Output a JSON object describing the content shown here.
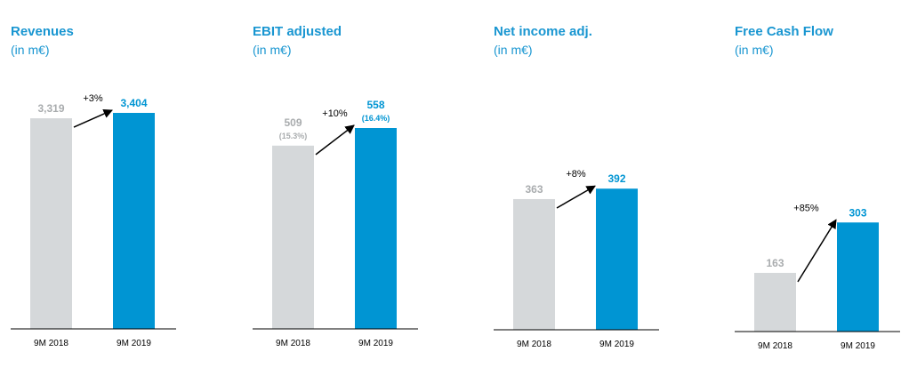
{
  "chart_data": [
    {
      "type": "bar",
      "title": "Revenues",
      "unit": "(in m€)",
      "categories": [
        "9M 2018",
        "9M 2019"
      ],
      "values": [
        3319,
        3404
      ],
      "value_labels": [
        "3,319",
        "3,404"
      ],
      "sub_labels": [
        "",
        ""
      ],
      "growth_label": "+3%",
      "colors": [
        "#d5d8da",
        "#0095d3"
      ],
      "label_colors": [
        "#a9acae",
        "#0095d3"
      ]
    },
    {
      "type": "bar",
      "title": "EBIT adjusted",
      "unit": "(in m€)",
      "categories": [
        "9M 2018",
        "9M 2019"
      ],
      "values": [
        509,
        558
      ],
      "value_labels": [
        "509",
        "558"
      ],
      "sub_labels": [
        "(15.3%)",
        "(16.4%)"
      ],
      "growth_label": "+10%",
      "colors": [
        "#d5d8da",
        "#0095d3"
      ],
      "label_colors": [
        "#a9acae",
        "#0095d3"
      ]
    },
    {
      "type": "bar",
      "title": "Net income adj.",
      "unit": "(in m€)",
      "categories": [
        "9M 2018",
        "9M 2019"
      ],
      "values": [
        363,
        392
      ],
      "value_labels": [
        "363",
        "392"
      ],
      "sub_labels": [
        "",
        ""
      ],
      "growth_label": "+8%",
      "colors": [
        "#d5d8da",
        "#0095d3"
      ],
      "label_colors": [
        "#a9acae",
        "#0095d3"
      ]
    },
    {
      "type": "bar",
      "title": "Free Cash Flow",
      "unit": "(in m€)",
      "categories": [
        "9M 2018",
        "9M 2019"
      ],
      "values": [
        163,
        303
      ],
      "value_labels": [
        "163",
        "303"
      ],
      "sub_labels": [
        "",
        ""
      ],
      "growth_label": "+85%",
      "colors": [
        "#d5d8da",
        "#0095d3"
      ],
      "label_colors": [
        "#a9acae",
        "#0095d3"
      ]
    }
  ]
}
